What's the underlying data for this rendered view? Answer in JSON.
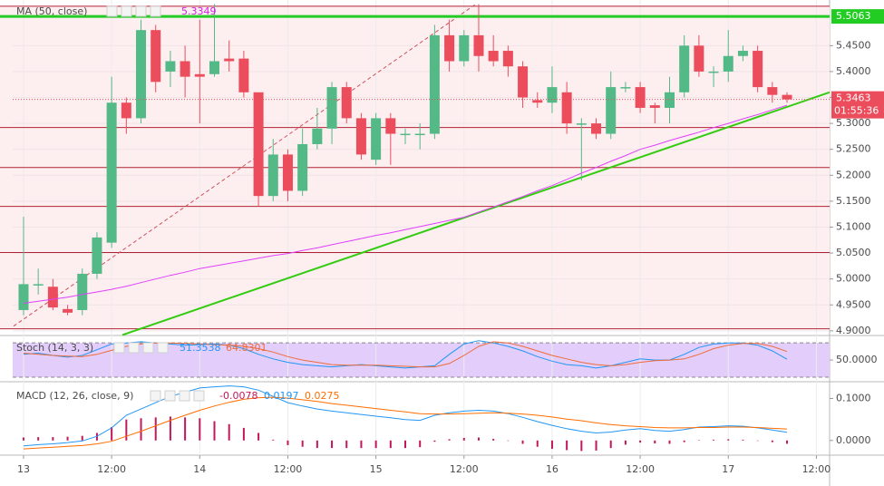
{
  "chart_data": [
    {
      "type": "candlestick",
      "title": "MA (50, close)",
      "xlim": [
        -0.74,
        54.9
      ],
      "ylim": [
        4.891,
        5.538
      ],
      "grid": true,
      "up_color": "#53b987",
      "down_color": "#eb4d5c",
      "open": [
        4.94,
        4.99,
        4.985,
        4.942,
        4.94,
        5.01,
        5.07,
        5.34,
        5.31,
        5.48,
        5.4,
        5.42,
        5.395,
        5.395,
        5.425,
        5.425,
        5.36,
        5.16,
        5.24,
        5.17,
        5.26,
        5.29,
        5.37,
        5.31,
        5.23,
        5.31,
        5.28,
        5.28,
        5.28,
        5.47,
        5.42,
        5.47,
        5.44,
        5.44,
        5.41,
        5.345,
        5.34,
        5.36,
        5.3,
        5.3,
        5.28,
        5.37,
        5.37,
        5.335,
        5.33,
        5.36,
        5.45,
        5.4,
        5.4,
        5.43,
        5.44,
        5.37,
        5.355
      ],
      "high": [
        5.12,
        5.02,
        5.0,
        4.95,
        5.02,
        5.09,
        5.39,
        5.35,
        5.5,
        5.49,
        5.44,
        5.45,
        5.5,
        5.53,
        5.46,
        5.44,
        5.36,
        5.27,
        5.25,
        5.29,
        5.33,
        5.38,
        5.38,
        5.32,
        5.32,
        5.32,
        5.29,
        5.3,
        5.49,
        5.5,
        5.48,
        5.53,
        5.47,
        5.45,
        5.42,
        5.36,
        5.41,
        5.38,
        5.31,
        5.31,
        5.4,
        5.38,
        5.38,
        5.34,
        5.39,
        5.47,
        5.47,
        5.41,
        5.48,
        5.45,
        5.45,
        5.38,
        5.36
      ],
      "low": [
        4.93,
        4.97,
        4.94,
        4.93,
        4.93,
        5.0,
        5.06,
        5.28,
        5.3,
        5.36,
        5.37,
        5.35,
        5.3,
        5.39,
        5.4,
        5.35,
        5.14,
        5.15,
        5.15,
        5.16,
        5.25,
        5.26,
        5.3,
        5.23,
        5.22,
        5.22,
        5.26,
        5.25,
        5.27,
        5.4,
        5.41,
        5.4,
        5.41,
        5.39,
        5.33,
        5.33,
        5.32,
        5.28,
        5.19,
        5.27,
        5.27,
        5.36,
        5.32,
        5.3,
        5.3,
        5.35,
        5.39,
        5.37,
        5.38,
        5.42,
        5.36,
        5.34,
        5.34
      ],
      "close": [
        4.99,
        4.99,
        4.945,
        4.935,
        5.01,
        5.08,
        5.34,
        5.31,
        5.48,
        5.38,
        5.42,
        5.39,
        5.39,
        5.42,
        5.42,
        5.36,
        5.16,
        5.24,
        5.17,
        5.26,
        5.29,
        5.37,
        5.31,
        5.24,
        5.31,
        5.28,
        5.28,
        5.28,
        5.47,
        5.42,
        5.47,
        5.43,
        5.42,
        5.41,
        5.35,
        5.34,
        5.37,
        5.3,
        5.3,
        5.28,
        5.37,
        5.37,
        5.33,
        5.33,
        5.36,
        5.45,
        5.4,
        5.4,
        5.43,
        5.44,
        5.37,
        5.355,
        5.3463
      ],
      "series": [
        {
          "color": "#e040fb",
          "values": [
            4.953,
            4.957,
            4.961,
            4.965,
            4.97,
            4.975,
            4.98,
            4.986,
            4.993,
            5.0,
            5.007,
            5.013,
            5.02,
            5.025,
            5.03,
            5.035,
            5.04,
            5.045,
            5.049,
            5.055,
            5.06,
            5.066,
            5.072,
            5.078,
            5.084,
            5.089,
            5.095,
            5.101,
            5.107,
            5.113,
            5.119,
            5.129,
            5.139,
            5.149,
            5.159,
            5.17,
            5.18,
            5.192,
            5.204,
            5.215,
            5.227,
            5.238,
            5.25,
            5.258,
            5.267,
            5.275,
            5.283,
            5.292,
            5.3,
            5.309,
            5.317,
            5.326,
            5.3349
          ]
        }
      ],
      "yticks": [
        {
          "value": 4.9,
          "label": "4.9000"
        },
        {
          "value": 4.95,
          "label": "4.9500"
        },
        {
          "value": 5.0,
          "label": "5.0000"
        },
        {
          "value": 5.05,
          "label": "5.0500"
        },
        {
          "value": 5.1,
          "label": "5.1000"
        },
        {
          "value": 5.15,
          "label": "5.1500"
        },
        {
          "value": 5.2,
          "label": "5.2000"
        },
        {
          "value": 5.25,
          "label": "5.2500"
        },
        {
          "value": 5.3,
          "label": "5.3000"
        },
        {
          "value": 5.35,
          "label": "5.3500"
        },
        {
          "value": 5.4,
          "label": "5.4000"
        },
        {
          "value": 5.45,
          "label": "5.4500"
        }
      ],
      "hline": {
        "value": 5.5063,
        "color": "#22cc22"
      },
      "levels": {
        "color": "#b22234",
        "values": [
          5.526,
          5.292,
          5.215,
          5.14,
          5.051,
          4.904
        ]
      },
      "trendlines": [
        {
          "color": "#33cc11",
          "dashed": false,
          "x": [
            6.73,
            54.9
          ],
          "y": [
            4.892,
            5.36
          ]
        },
        {
          "color": "#d0505a",
          "dashed": true,
          "x": [
            -0.68,
            30.8
          ],
          "y": [
            4.909,
            5.53
          ]
        }
      ],
      "countdown": "01:55:36"
    },
    {
      "type": "line",
      "title": "Stoch (14, 3, 3)",
      "xlim": [
        -0.74,
        54.9
      ],
      "ylim": [
        12,
        93
      ],
      "band": [
        20,
        80
      ],
      "band_color": "#e2cdfb",
      "yticks": [
        {
          "value": 50,
          "label": "50.0000"
        }
      ],
      "series": [
        {
          "color": "#2196f3",
          "values": [
            60,
            62,
            58,
            55,
            58,
            68,
            78,
            80,
            82,
            80,
            78,
            76,
            77,
            78,
            76,
            70,
            60,
            52,
            46,
            42,
            40,
            38,
            40,
            42,
            40,
            38,
            36,
            38,
            40,
            60,
            78,
            84,
            80,
            74,
            66,
            56,
            48,
            42,
            40,
            36,
            40,
            46,
            52,
            50,
            50,
            60,
            72,
            78,
            80,
            80,
            76,
            66,
            51.3538
          ]
        },
        {
          "color": "#ef6c37",
          "values": [
            62,
            60,
            58,
            57,
            56,
            60,
            67,
            74,
            78,
            80,
            80,
            79,
            78,
            77,
            76,
            74,
            70,
            64,
            56,
            50,
            46,
            42,
            41,
            41,
            41,
            40,
            39,
            38,
            38,
            44,
            58,
            74,
            82,
            80,
            74,
            66,
            58,
            52,
            46,
            42,
            40,
            42,
            46,
            49,
            50,
            52,
            60,
            70,
            76,
            79,
            79,
            74,
            64.8301
          ]
        }
      ]
    },
    {
      "type": "combo",
      "title": "MACD (12, 26, close, 9)",
      "xlim": [
        -0.74,
        54.9
      ],
      "ylim": [
        -0.035,
        0.14
      ],
      "grid": true,
      "yticks": [
        {
          "value": 0,
          "label": "0.0000"
        },
        {
          "value": 0.1,
          "label": "0.1000"
        }
      ],
      "xticks": [
        {
          "value": 0,
          "label": "13"
        },
        {
          "value": 6,
          "label": "12:00"
        },
        {
          "value": 12,
          "label": "14"
        },
        {
          "value": 18,
          "label": "12:00"
        },
        {
          "value": 24,
          "label": "15"
        },
        {
          "value": 30,
          "label": "12:00"
        },
        {
          "value": 36,
          "label": "16"
        },
        {
          "value": 42,
          "label": "12:00"
        },
        {
          "value": 48,
          "label": "17"
        },
        {
          "value": 54,
          "label": "12:00"
        }
      ],
      "bars": {
        "color": "#c2185b",
        "values": [
          0.007,
          0.008,
          0.008,
          0.009,
          0.011,
          0.018,
          0.032,
          0.05,
          0.053,
          0.055,
          0.057,
          0.055,
          0.053,
          0.046,
          0.039,
          0.03,
          0.018,
          0.002,
          -0.011,
          -0.015,
          -0.018,
          -0.018,
          -0.018,
          -0.018,
          -0.018,
          -0.018,
          -0.018,
          -0.016,
          -0.003,
          0.003,
          0.006,
          0.007,
          0.004,
          -0.001,
          -0.008,
          -0.015,
          -0.02,
          -0.023,
          -0.025,
          -0.024,
          -0.018,
          -0.01,
          -0.005,
          -0.007,
          -0.008,
          -0.004,
          0.001,
          0.002,
          0.003,
          0.002,
          -0.001,
          -0.004,
          -0.0078
        ]
      },
      "series": [
        {
          "color": "#2196f3",
          "values": [
            -0.013,
            -0.01,
            -0.008,
            -0.005,
            -0.001,
            0.01,
            0.03,
            0.06,
            0.075,
            0.09,
            0.105,
            0.115,
            0.125,
            0.128,
            0.13,
            0.128,
            0.12,
            0.105,
            0.09,
            0.082,
            0.075,
            0.07,
            0.066,
            0.062,
            0.058,
            0.054,
            0.05,
            0.048,
            0.06,
            0.066,
            0.07,
            0.072,
            0.07,
            0.064,
            0.055,
            0.045,
            0.036,
            0.028,
            0.022,
            0.018,
            0.02,
            0.025,
            0.028,
            0.024,
            0.022,
            0.026,
            0.032,
            0.033,
            0.035,
            0.034,
            0.03,
            0.025,
            0.0197
          ]
        },
        {
          "color": "#ff6d00",
          "values": [
            -0.02,
            -0.018,
            -0.016,
            -0.014,
            -0.012,
            -0.008,
            -0.002,
            0.01,
            0.022,
            0.035,
            0.048,
            0.06,
            0.072,
            0.082,
            0.091,
            0.098,
            0.102,
            0.103,
            0.101,
            0.097,
            0.093,
            0.088,
            0.084,
            0.08,
            0.076,
            0.072,
            0.068,
            0.064,
            0.063,
            0.063,
            0.064,
            0.065,
            0.066,
            0.065,
            0.063,
            0.06,
            0.056,
            0.051,
            0.047,
            0.042,
            0.038,
            0.035,
            0.033,
            0.031,
            0.03,
            0.03,
            0.031,
            0.031,
            0.032,
            0.032,
            0.031,
            0.029,
            0.0275
          ]
        }
      ]
    }
  ]
}
